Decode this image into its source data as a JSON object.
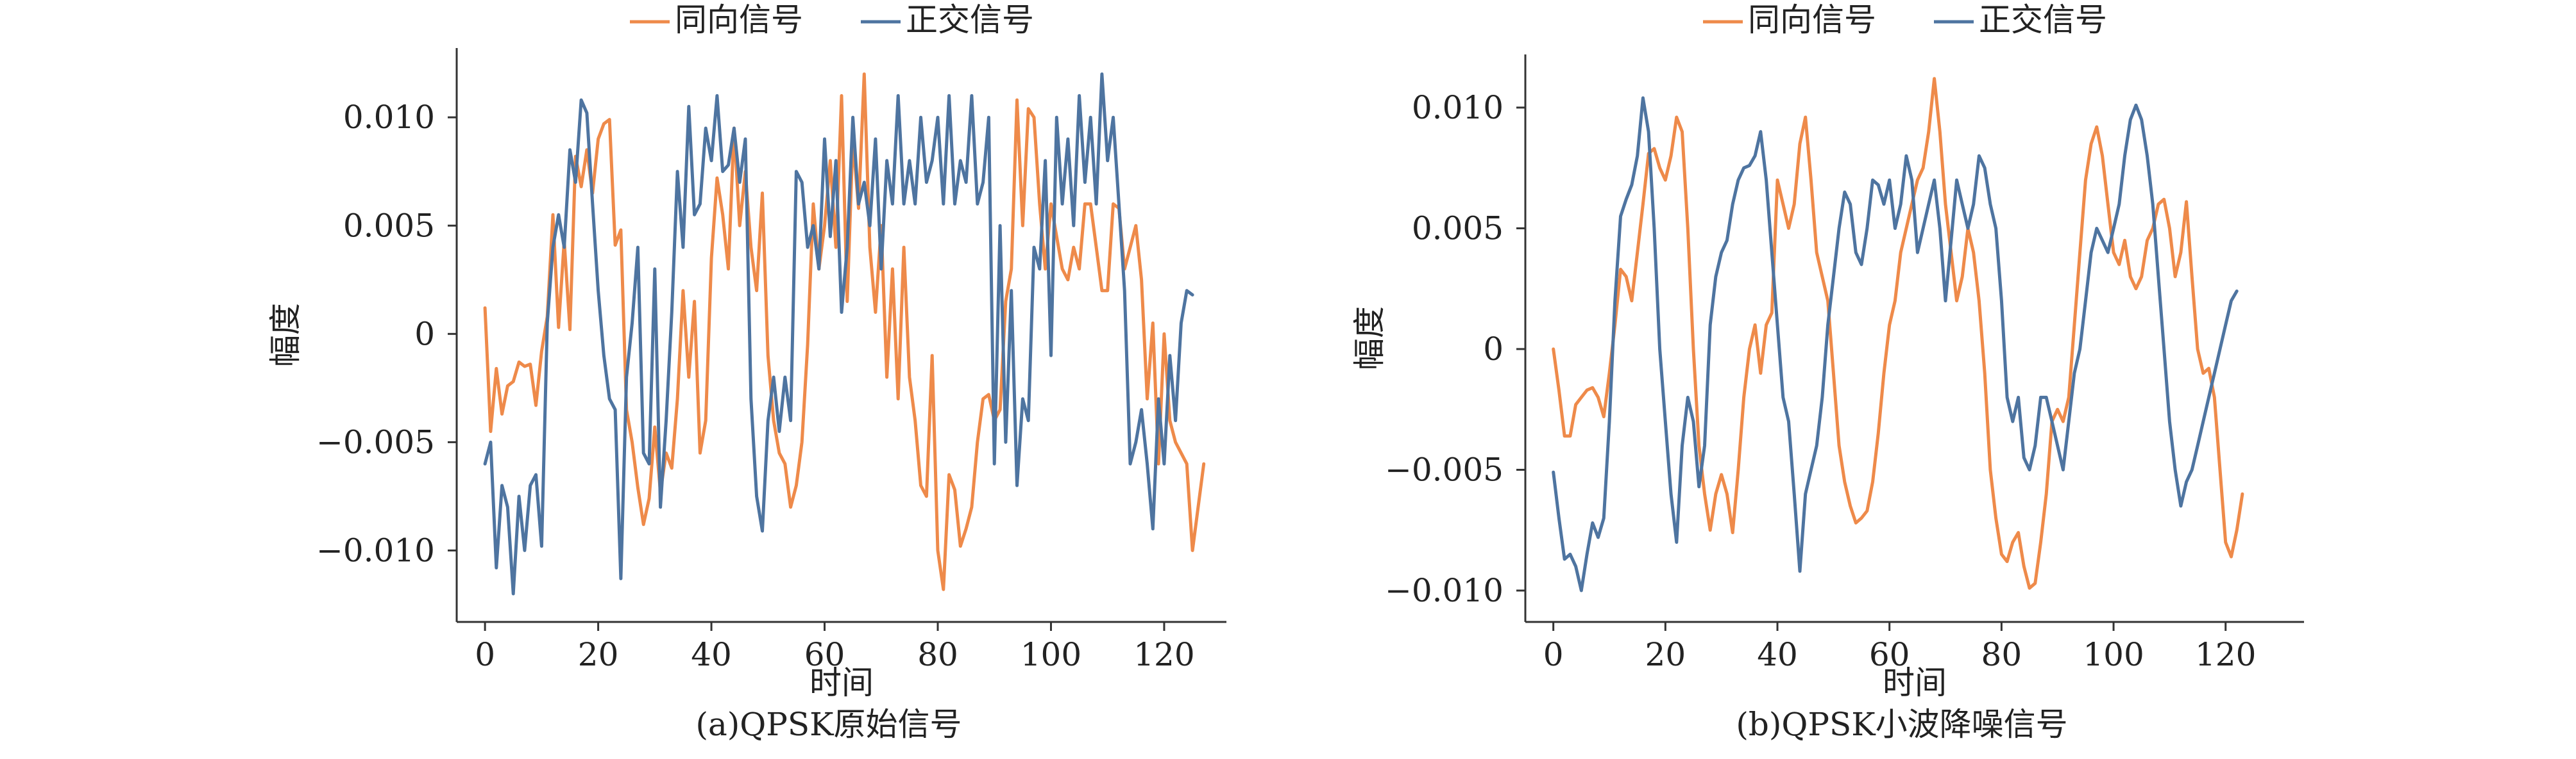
{
  "colors": {
    "in_phase": "#EE8A4A",
    "quadrature": "#4E74A0",
    "axis": "#333333"
  },
  "chart_data": [
    {
      "type": "line",
      "caption": "(a)QPSK原始信号",
      "xlabel": "时间",
      "ylabel": "幅度",
      "xlim": [
        -5,
        131
      ],
      "ylim": [
        -0.0133,
        0.0132
      ],
      "x_ticks": [
        0,
        20,
        40,
        60,
        80,
        100,
        120
      ],
      "y_ticks": [
        -0.01,
        -0.005,
        0,
        0.005,
        0.01
      ],
      "y_tick_labels": [
        "−0.010",
        "−0.005",
        "0",
        "0.005",
        "0.010"
      ],
      "legend_position": "top-center",
      "series": [
        {
          "name": "同向信号",
          "color": "#EE8A4A",
          "values": [
            0.0012,
            -0.0045,
            -0.0016,
            -0.0037,
            -0.0024,
            -0.0022,
            -0.0013,
            -0.0015,
            -0.0014,
            -0.0033,
            -0.0008,
            0.0008,
            0.0055,
            0.0003,
            0.0043,
            0.0002,
            0.0082,
            0.0068,
            0.0085,
            0.0065,
            0.009,
            0.0097,
            0.0099,
            0.0041,
            0.0048,
            -0.0035,
            -0.005,
            -0.0071,
            -0.0088,
            -0.0076,
            -0.0043,
            -0.0073,
            -0.0055,
            -0.0062,
            -0.003,
            0.002,
            -0.002,
            0.0015,
            -0.0055,
            -0.004,
            0.0035,
            0.0072,
            0.0055,
            0.003,
            0.0095,
            0.005,
            0.0075,
            0.004,
            0.002,
            0.0065,
            -0.001,
            -0.004,
            -0.0055,
            -0.006,
            -0.008,
            -0.007,
            -0.005,
            -0.0005,
            0.006,
            0.003,
            0.005,
            0.008,
            0.004,
            0.011,
            0.0015,
            0.009,
            0.0058,
            0.012,
            0.004,
            0.001,
            0.005,
            -0.002,
            0.003,
            -0.003,
            0.004,
            -0.002,
            -0.004,
            -0.007,
            -0.0075,
            -0.001,
            -0.01,
            -0.0118,
            -0.0065,
            -0.0072,
            -0.0098,
            -0.009,
            -0.008,
            -0.005,
            -0.003,
            -0.0028,
            -0.004,
            -0.0035,
            0.0015,
            0.003,
            0.0108,
            0.005,
            0.0104,
            0.01,
            0.006,
            0.003,
            0.006,
            0.0045,
            0.003,
            0.0025,
            0.004,
            0.003,
            0.006,
            0.006,
            0.004,
            0.002,
            0.002,
            0.006,
            0.0058,
            0.003,
            0.004,
            0.005,
            0.0025,
            -0.003,
            0.0005,
            -0.006,
            0.0,
            -0.004,
            -0.005,
            -0.0055,
            -0.006,
            -0.01,
            -0.008,
            -0.006
          ]
        },
        {
          "name": "正交信号",
          "color": "#4E74A0",
          "values": [
            -0.006,
            -0.005,
            -0.0108,
            -0.007,
            -0.008,
            -0.012,
            -0.0075,
            -0.01,
            -0.007,
            -0.0065,
            -0.0098,
            0.0005,
            0.004,
            0.0055,
            0.004,
            0.0085,
            0.007,
            0.0108,
            0.0102,
            0.006,
            0.002,
            -0.001,
            -0.003,
            -0.0035,
            -0.0113,
            -0.002,
            0.0005,
            0.004,
            -0.0055,
            -0.006,
            0.003,
            -0.008,
            -0.004,
            0.001,
            0.0075,
            0.004,
            0.0105,
            0.0055,
            0.006,
            0.0095,
            0.008,
            0.011,
            0.0075,
            0.0078,
            0.0095,
            0.007,
            0.009,
            -0.003,
            -0.0075,
            -0.0091,
            -0.004,
            -0.002,
            -0.0045,
            -0.002,
            -0.004,
            0.0075,
            0.007,
            0.004,
            0.005,
            0.003,
            0.009,
            0.0045,
            0.008,
            0.001,
            0.004,
            0.01,
            0.006,
            0.007,
            0.005,
            0.009,
            0.003,
            0.008,
            0.006,
            0.011,
            0.006,
            0.008,
            0.006,
            0.01,
            0.007,
            0.008,
            0.01,
            0.006,
            0.011,
            0.006,
            0.008,
            0.007,
            0.011,
            0.006,
            0.007,
            0.01,
            -0.006,
            0.005,
            -0.005,
            0.002,
            -0.007,
            -0.003,
            -0.004,
            0.004,
            0.003,
            0.008,
            -0.001,
            0.01,
            0.006,
            0.009,
            0.005,
            0.011,
            0.007,
            0.01,
            0.006,
            0.012,
            0.008,
            0.01,
            0.006,
            0.002,
            -0.006,
            -0.005,
            -0.0035,
            -0.006,
            -0.009,
            -0.003,
            -0.006,
            -0.001,
            -0.004,
            0.0005,
            0.002,
            0.0018
          ]
        }
      ]
    },
    {
      "type": "line",
      "caption": "(b)QPSK小波降噪信号",
      "xlabel": "时间",
      "ylabel": "幅度",
      "xlim": [
        -5,
        134
      ],
      "ylim": [
        -0.0113,
        0.0122
      ],
      "x_ticks": [
        0,
        20,
        40,
        60,
        80,
        100,
        120
      ],
      "y_ticks": [
        -0.01,
        -0.005,
        0,
        0.005,
        0.01
      ],
      "y_tick_labels": [
        "−0.010",
        "−0.005",
        "0",
        "0.005",
        "0.010"
      ],
      "legend_position": "top-center",
      "series": [
        {
          "name": "同向信号",
          "color": "#EE8A4A",
          "values": [
            0.0,
            -0.0017,
            -0.0036,
            -0.0036,
            -0.0023,
            -0.002,
            -0.0017,
            -0.0016,
            -0.002,
            -0.0028,
            -0.001,
            0.001,
            0.0033,
            0.003,
            0.002,
            0.004,
            0.006,
            0.0081,
            0.0083,
            0.0075,
            0.007,
            0.008,
            0.0096,
            0.009,
            0.005,
            0.0,
            -0.004,
            -0.006,
            -0.0075,
            -0.006,
            -0.0052,
            -0.006,
            -0.0076,
            -0.005,
            -0.002,
            0.0,
            0.001,
            -0.001,
            0.001,
            0.0015,
            0.007,
            0.006,
            0.005,
            0.006,
            0.0085,
            0.0096,
            0.007,
            0.004,
            0.003,
            0.002,
            -0.001,
            -0.004,
            -0.0055,
            -0.0065,
            -0.0072,
            -0.007,
            -0.0067,
            -0.0055,
            -0.0035,
            -0.001,
            0.001,
            0.002,
            0.004,
            0.005,
            0.006,
            0.007,
            0.0075,
            0.009,
            0.0112,
            0.009,
            0.006,
            0.004,
            0.002,
            0.003,
            0.005,
            0.004,
            0.002,
            -0.001,
            -0.005,
            -0.007,
            -0.0085,
            -0.0088,
            -0.008,
            -0.0076,
            -0.009,
            -0.0099,
            -0.0097,
            -0.008,
            -0.006,
            -0.003,
            -0.0025,
            -0.003,
            -0.002,
            0.001,
            0.004,
            0.007,
            0.0085,
            0.0092,
            0.008,
            0.006,
            0.004,
            0.0035,
            0.0045,
            0.003,
            0.0025,
            0.003,
            0.0045,
            0.005,
            0.006,
            0.0062,
            0.005,
            0.003,
            0.004,
            0.0061,
            0.003,
            0.0,
            -0.001,
            -0.0008,
            -0.002,
            -0.005,
            -0.008,
            -0.0086,
            -0.0075,
            -0.006
          ]
        },
        {
          "name": "正交信号",
          "color": "#4E74A0",
          "values": [
            -0.0051,
            -0.007,
            -0.0087,
            -0.0085,
            -0.009,
            -0.01,
            -0.0085,
            -0.0072,
            -0.0078,
            -0.007,
            -0.003,
            0.002,
            0.0055,
            0.0062,
            0.0068,
            0.008,
            0.0104,
            0.009,
            0.005,
            0.0,
            -0.003,
            -0.006,
            -0.008,
            -0.004,
            -0.002,
            -0.003,
            -0.0057,
            -0.004,
            0.001,
            0.003,
            0.004,
            0.0045,
            0.006,
            0.007,
            0.0075,
            0.0076,
            0.008,
            0.009,
            0.007,
            0.004,
            0.001,
            -0.002,
            -0.003,
            -0.006,
            -0.0092,
            -0.006,
            -0.005,
            -0.004,
            -0.002,
            0.001,
            0.003,
            0.005,
            0.0065,
            0.006,
            0.004,
            0.0035,
            0.005,
            0.007,
            0.0068,
            0.006,
            0.007,
            0.005,
            0.006,
            0.008,
            0.007,
            0.004,
            0.005,
            0.006,
            0.007,
            0.005,
            0.002,
            0.0045,
            0.007,
            0.006,
            0.005,
            0.006,
            0.008,
            0.0075,
            0.006,
            0.005,
            0.002,
            -0.002,
            -0.003,
            -0.002,
            -0.0045,
            -0.005,
            -0.004,
            -0.002,
            -0.002,
            -0.003,
            -0.004,
            -0.005,
            -0.003,
            -0.001,
            0.0,
            0.002,
            0.004,
            0.005,
            0.0045,
            0.004,
            0.005,
            0.006,
            0.008,
            0.0095,
            0.0101,
            0.0095,
            0.008,
            0.006,
            0.003,
            0.0,
            -0.003,
            -0.005,
            -0.0065,
            -0.0055,
            -0.005,
            -0.004,
            -0.003,
            -0.002,
            -0.001,
            0.0,
            0.001,
            0.002,
            0.0024
          ]
        }
      ]
    }
  ]
}
